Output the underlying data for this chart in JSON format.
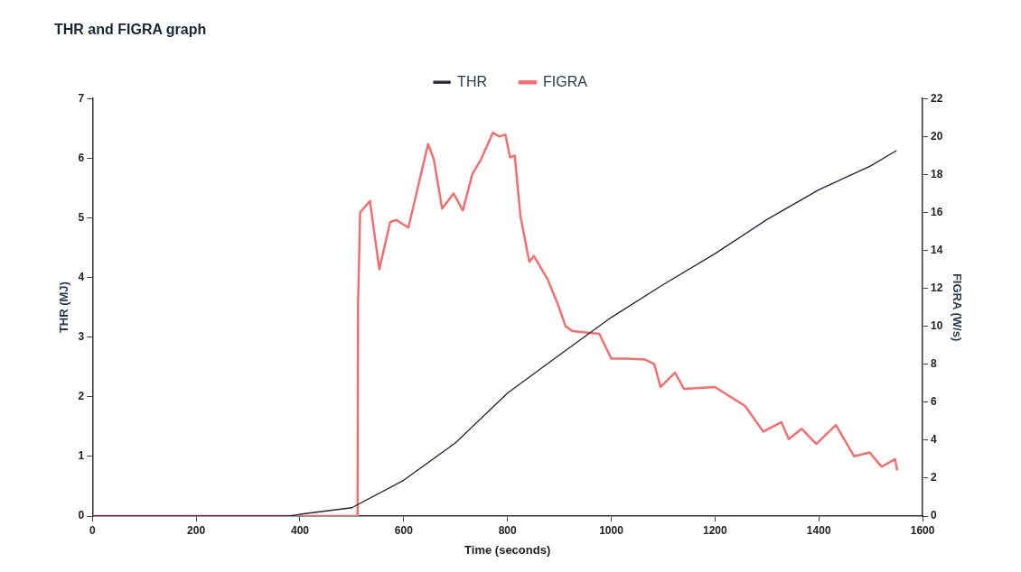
{
  "chart_data": {
    "type": "line",
    "title": "THR and FIGRA graph",
    "xlabel": "Time (seconds)",
    "ylabel": "THR (MJ)",
    "y2label": "FIGRA (W/s)",
    "xlim": [
      0,
      1600
    ],
    "xticks": [
      0,
      200,
      400,
      600,
      800,
      1000,
      1200,
      1400,
      1600
    ],
    "ylim": [
      0,
      7
    ],
    "yticks": [
      0,
      1,
      2,
      3,
      4,
      5,
      6,
      7
    ],
    "y2lim": [
      0,
      22
    ],
    "y2ticks": [
      0,
      2,
      4,
      6,
      8,
      10,
      12,
      14,
      16,
      18,
      20,
      22
    ],
    "grid": false,
    "legend": "top",
    "marker": "none",
    "line_style": "solid",
    "series": [
      {
        "name": "THR",
        "color": "#222233",
        "x": [
          0,
          380,
          400,
          500,
          600,
          700,
          800,
          900,
          1000,
          1100,
          1200,
          1300,
          1400,
          1500,
          1550
        ],
        "values": [
          0,
          0,
          0.03,
          0.14,
          0.6,
          1.23,
          2.06,
          2.7,
          3.33,
          3.88,
          4.4,
          4.97,
          5.47,
          5.87,
          6.13
        ]
      },
      {
        "name": "FIGRA",
        "color": "#f07070",
        "axis": "y2",
        "x": [
          0,
          511,
          512,
          516,
          535,
          553,
          574,
          586,
          609,
          647,
          658,
          674,
          696,
          714,
          732,
          749,
          772,
          784,
          796,
          805,
          814,
          825,
          842,
          851,
          877,
          898,
          912,
          925,
          942,
          977,
          1000,
          1030,
          1065,
          1083,
          1095,
          1123,
          1140,
          1200,
          1258,
          1293,
          1328,
          1342,
          1367,
          1395,
          1433,
          1468,
          1498,
          1521,
          1547,
          1551
        ],
        "values": [
          0,
          0,
          11.2,
          16.0,
          16.6,
          13.0,
          15.5,
          15.6,
          15.2,
          19.6,
          18.8,
          16.2,
          17.0,
          16.1,
          18.0,
          18.8,
          20.2,
          20.0,
          20.1,
          18.9,
          19.0,
          15.8,
          13.4,
          13.7,
          12.5,
          11.1,
          10.0,
          9.75,
          9.7,
          9.6,
          8.3,
          8.3,
          8.25,
          8.0,
          6.8,
          7.55,
          6.7,
          6.8,
          5.8,
          4.45,
          4.95,
          4.05,
          4.6,
          3.8,
          4.8,
          3.15,
          3.35,
          2.6,
          3.0,
          2.4
        ]
      }
    ]
  }
}
